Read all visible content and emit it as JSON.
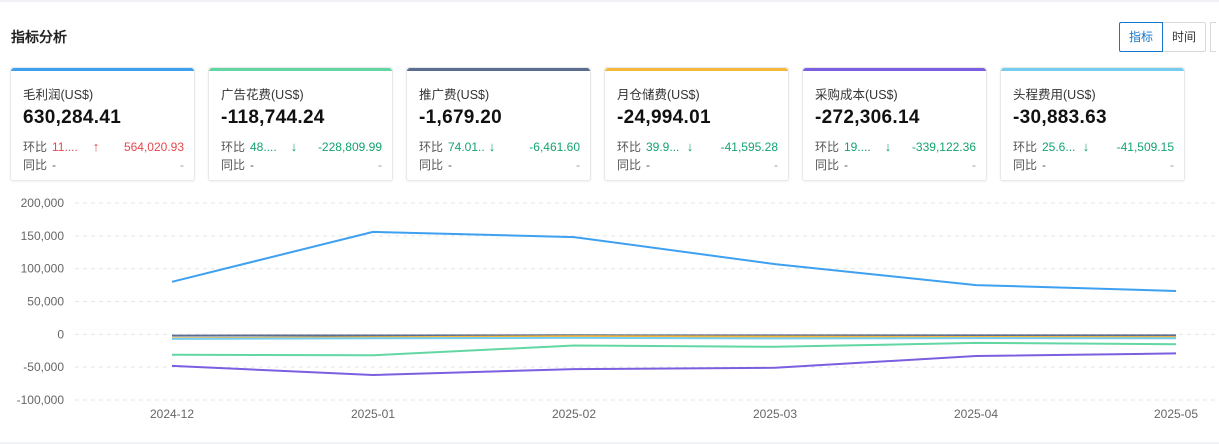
{
  "header": {
    "title": "指标分析",
    "toggle": {
      "options": [
        "指标",
        "时间"
      ],
      "selected": "指标"
    }
  },
  "colors": {
    "accent": "#1677cc",
    "up": "#e5484d",
    "down": "#14a36f"
  },
  "cards": [
    {
      "label": "毛利润(US$)",
      "value": "630,284.41",
      "mom_label": "环比",
      "mom_pct": "11....",
      "mom_dir": "up",
      "mom_delta": "564,020.93",
      "yoy_label": "同比",
      "yoy_pct": "-",
      "yoy_delta": "-",
      "color": "#3ea0f0"
    },
    {
      "label": "广告花费(US$)",
      "value": "-118,744.24",
      "mom_label": "环比",
      "mom_pct": "48....",
      "mom_dir": "down",
      "mom_delta": "-228,809.99",
      "yoy_label": "同比",
      "yoy_pct": "-",
      "yoy_delta": "-",
      "color": "#62d6a3"
    },
    {
      "label": "推广费(US$)",
      "value": "-1,679.20",
      "mom_label": "环比",
      "mom_pct": "74.01...",
      "mom_dir": "down",
      "mom_delta": "-6,461.60",
      "yoy_label": "同比",
      "yoy_pct": "-",
      "yoy_delta": "-",
      "color": "#5b6e8f"
    },
    {
      "label": "月仓储费(US$)",
      "value": "-24,994.01",
      "mom_label": "环比",
      "mom_pct": "39.9...",
      "mom_dir": "down",
      "mom_delta": "-41,595.28",
      "yoy_label": "同比",
      "yoy_pct": "-",
      "yoy_delta": "-",
      "color": "#f5b73e"
    },
    {
      "label": "采购成本(US$)",
      "value": "-272,306.14",
      "mom_label": "环比",
      "mom_pct": "19....",
      "mom_dir": "down",
      "mom_delta": "-339,122.36",
      "yoy_label": "同比",
      "yoy_pct": "-",
      "yoy_delta": "-",
      "color": "#7b5fe0"
    },
    {
      "label": "头程费用(US$)",
      "value": "-30,883.63",
      "mom_label": "环比",
      "mom_pct": "25.6...",
      "mom_dir": "down",
      "mom_delta": "-41,509.15",
      "yoy_label": "同比",
      "yoy_pct": "-",
      "yoy_delta": "-",
      "color": "#75cdf0"
    }
  ],
  "chart_data": {
    "type": "line",
    "x": [
      "2024-12",
      "2025-01",
      "2025-02",
      "2025-03",
      "2025-04",
      "2025-05"
    ],
    "y_ticks": [
      "200,000",
      "150,000",
      "100,000",
      "50,000",
      "0",
      "-50,000",
      "-100,000"
    ],
    "ylim": [
      -100000,
      200000
    ],
    "grid": true,
    "series": [
      {
        "color": "#3ea0f0",
        "values": [
          80000,
          156000,
          148000,
          107000,
          75000,
          66000
        ]
      },
      {
        "color": "#62d6a3",
        "values": [
          -31000,
          -32000,
          -17000,
          -19000,
          -13000,
          -15000
        ]
      },
      {
        "color": "#5b6e8f",
        "values": [
          -2000,
          -1800,
          -1500,
          -1700,
          -1600,
          -1700
        ]
      },
      {
        "color": "#f5b73e",
        "values": [
          -6000,
          -4500,
          -3000,
          -3500,
          -4000,
          -4200
        ]
      },
      {
        "color": "#7b5fe0",
        "values": [
          -48000,
          -62000,
          -53000,
          -51000,
          -33000,
          -29000
        ]
      },
      {
        "color": "#75cdf0",
        "values": [
          -7000,
          -6000,
          -5500,
          -6200,
          -5800,
          -6000
        ]
      }
    ]
  }
}
